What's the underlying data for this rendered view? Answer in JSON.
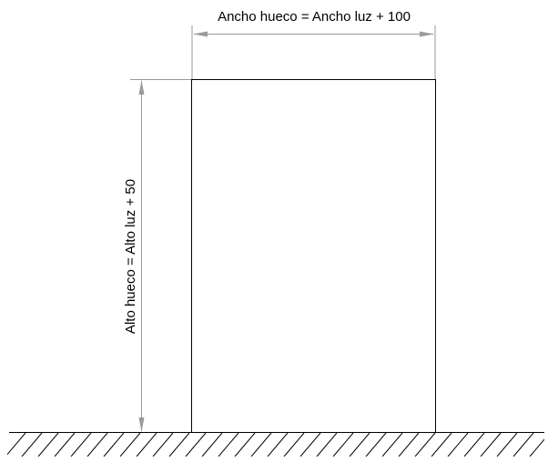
{
  "dimensions": {
    "width_label": "Ancho hueco = Ancho luz + 100",
    "height_label": "Alto hueco = Alto luz + 50"
  },
  "colors": {
    "outline": "#000000",
    "dimension_line": "#9a9a9a",
    "text": "#000000",
    "background": "#ffffff"
  }
}
